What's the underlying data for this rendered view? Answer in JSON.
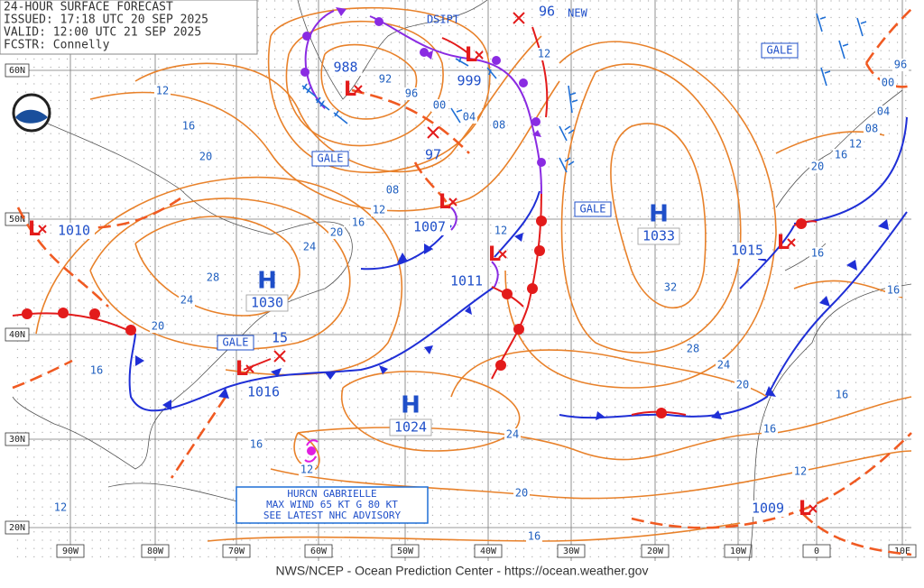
{
  "header": {
    "lines": [
      "24-HOUR SURFACE FORECAST",
      "ISSUED: 17:18 UTC 20 SEP 2025",
      "VALID: 12:00 UTC 21 SEP 2025",
      "FCSTR: Connelly"
    ]
  },
  "footer": "NWS/NCEP - Ocean Prediction Center - https://ocean.weather.gov",
  "latitude_labels": [
    "60N",
    "50N",
    "40N",
    "30N",
    "20N"
  ],
  "longitude_labels": [
    "90W",
    "80W",
    "70W",
    "60W",
    "50W",
    "40W",
    "30W",
    "20W",
    "10W",
    "0",
    "10E"
  ],
  "centers": [
    {
      "symbol": "L",
      "pressure": "988"
    },
    {
      "symbol": "L",
      "pressure": "999"
    },
    {
      "symbol": "L",
      "pressure": "1007"
    },
    {
      "symbol": "L",
      "pressure": "1011"
    },
    {
      "symbol": "L",
      "pressure": "1010"
    },
    {
      "symbol": "L",
      "pressure": "1016"
    },
    {
      "symbol": "L",
      "pressure": "1015"
    },
    {
      "symbol": "L",
      "pressure": "1009"
    },
    {
      "symbol": "H",
      "pressure": "1030"
    },
    {
      "symbol": "H",
      "pressure": "1033"
    },
    {
      "symbol": "H",
      "pressure": "1024"
    }
  ],
  "forecast_positions": [
    "97",
    "15",
    "96"
  ],
  "annotations": {
    "dissipating": "DSIPT",
    "new": "NEW",
    "gale": [
      "GALE",
      "GALE",
      "GALE",
      "GALE"
    ]
  },
  "hurricane_box": [
    "HURCN GABRIELLE",
    "MAX WIND 65 KT G 80 KT",
    "SEE LATEST NHC ADVISORY"
  ],
  "isobar_labels": [
    "92",
    "96",
    "00",
    "04",
    "08",
    "12",
    "12",
    "16",
    "20",
    "08",
    "12",
    "16",
    "20",
    "24",
    "28",
    "24",
    "20",
    "16",
    "12",
    "32",
    "28",
    "24",
    "20",
    "16",
    "16",
    "12",
    "16",
    "16",
    "20",
    "16",
    "12",
    "08",
    "04",
    "00",
    "96",
    "24",
    "20",
    "16",
    "16",
    "12",
    "12"
  ]
}
